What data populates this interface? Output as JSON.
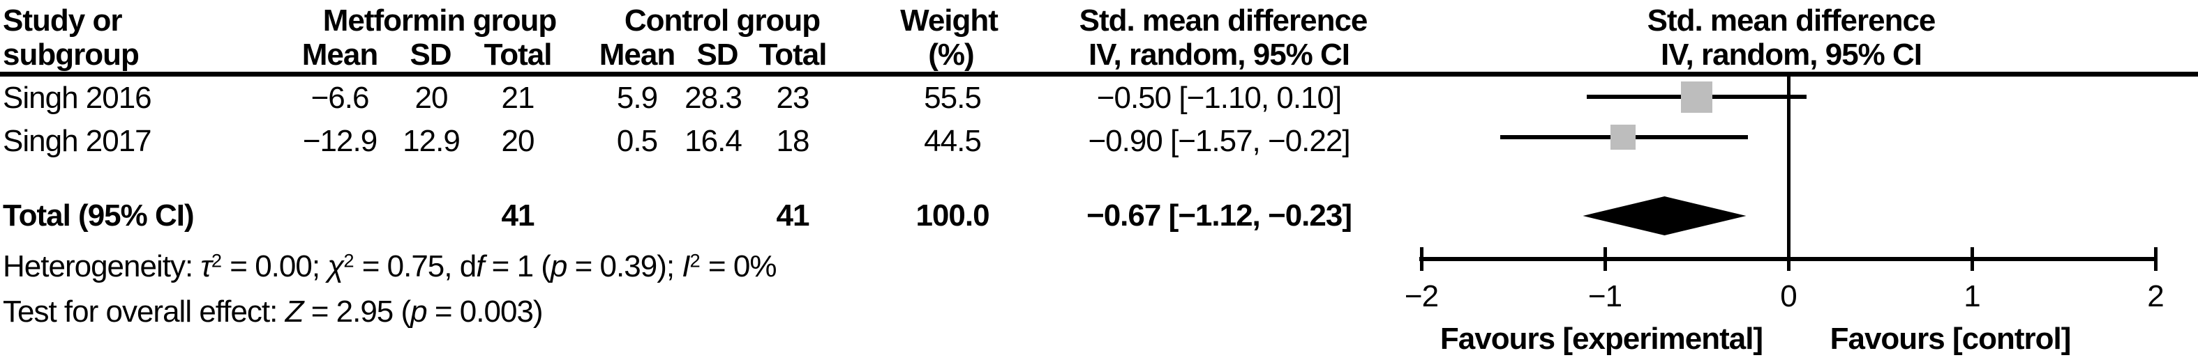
{
  "figure": {
    "header": {
      "study_col_line1": "Study or",
      "study_col_line2": "subgroup",
      "group1_label": "Metformin group",
      "group2_label": "Control group",
      "g1_mean_label": "Mean",
      "g1_sd_label": "SD",
      "g1_total_label": "Total",
      "g2_mean_label": "Mean",
      "g2_sd_label": "SD",
      "g2_total_label": "Total",
      "weight_line1": "Weight",
      "weight_line2": "(%)",
      "effect_col_line1": "Std. mean difference",
      "effect_col_line2": "IV, random, 95% CI",
      "plot_col_line1": "Std. mean difference",
      "plot_col_line2": "IV, random, 95% CI"
    }
  },
  "chart_data": {
    "type": "forest",
    "effect_measure": "Std. mean difference",
    "model": "IV, random, 95% CI",
    "studies": [
      {
        "label": "Singh 2016",
        "group1": {
          "mean": "−6.6",
          "sd": "20",
          "total": "21"
        },
        "group2": {
          "mean": "5.9",
          "sd": "28.3",
          "total": "23"
        },
        "weight": "55.5",
        "effect_text": "−0.50 [−1.10, 0.10]",
        "effect": -0.5,
        "ci_low": -1.1,
        "ci_high": 0.1
      },
      {
        "label": "Singh 2017",
        "group1": {
          "mean": "−12.9",
          "sd": "12.9",
          "total": "20"
        },
        "group2": {
          "mean": "0.5",
          "sd": "16.4",
          "total": "18"
        },
        "weight": "44.5",
        "effect_text": "−0.90 [−1.57, −0.22]",
        "effect": -0.9,
        "ci_low": -1.57,
        "ci_high": -0.22
      }
    ],
    "total": {
      "label": "Total (95% CI)",
      "group1_total": "41",
      "group2_total": "41",
      "weight": "100.0",
      "effect_text": "−0.67 [−1.12, −0.23]",
      "effect": -0.67,
      "ci_low": -1.12,
      "ci_high": -0.23
    },
    "heterogeneity_segments": [
      {
        "text": "Heterogeneity: "
      },
      {
        "text": "τ",
        "italic": true
      },
      {
        "text": "2",
        "sup": true
      },
      {
        "text": " = 0.00; "
      },
      {
        "text": "χ",
        "italic": true
      },
      {
        "text": "2",
        "sup": true
      },
      {
        "text": " = 0.75, d"
      },
      {
        "text": "f",
        "italic": true
      },
      {
        "text": " = 1 ("
      },
      {
        "text": "p",
        "italic": true
      },
      {
        "text": " = 0.39); "
      },
      {
        "text": "I",
        "italic": true
      },
      {
        "text": "2",
        "sup": true
      },
      {
        "text": " = 0%"
      }
    ],
    "overall_effect_segments": [
      {
        "text": "Test for overall effect: "
      },
      {
        "text": "Z",
        "italic": true
      },
      {
        "text": " = 2.95 ("
      },
      {
        "text": "p",
        "italic": true
      },
      {
        "text": " = 0.003)"
      }
    ],
    "axis": {
      "tick_labels": [
        "−2",
        "−1",
        "0",
        "1",
        "2"
      ],
      "tick_values": [
        -2,
        -1,
        0,
        1,
        2
      ],
      "xlim": [
        -2,
        2
      ],
      "favours_left": "Favours [experimental]",
      "favours_right": "Favours [control]"
    },
    "colors": {
      "marker": "#bdbdbd",
      "line": "#000000",
      "diamond": "#000000"
    }
  }
}
